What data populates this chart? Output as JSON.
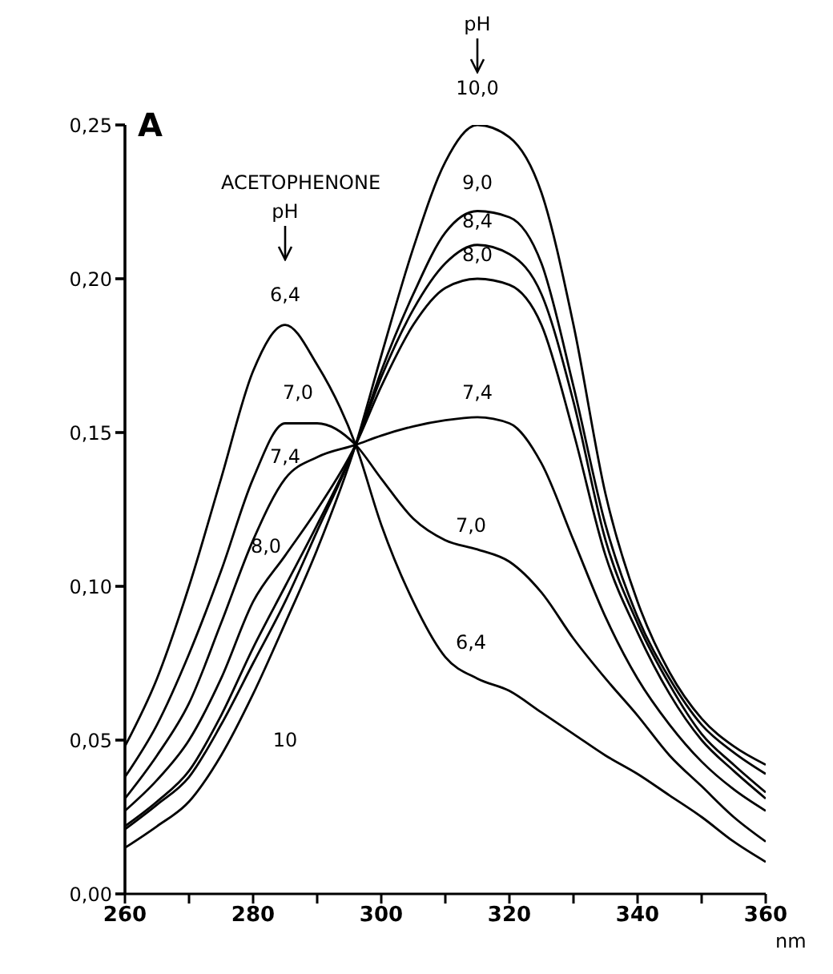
{
  "chart_data": {
    "type": "line",
    "title": "ACETOPHENONE",
    "xlabel": "nm",
    "ylabel": "A",
    "x": [
      260,
      265,
      270,
      275,
      280,
      285,
      290,
      296,
      300,
      305,
      310,
      315,
      320,
      325,
      330,
      335,
      340,
      345,
      350,
      355,
      360
    ],
    "series": [
      {
        "color": "#000000",
        "values": [
          0.048,
          0.07,
          0.1,
          0.135,
          0.17,
          0.185,
          0.172,
          0.146,
          0.12,
          0.095,
          0.077,
          0.07,
          0.066,
          0.059,
          0.052,
          0.045,
          0.039,
          0.032,
          0.025,
          0.017,
          0.0104
        ]
      },
      {
        "color": "#000000",
        "values": [
          0.038,
          0.055,
          0.078,
          0.105,
          0.135,
          0.153,
          0.153,
          0.146,
          0.135,
          0.122,
          0.115,
          0.112,
          0.108,
          0.098,
          0.083,
          0.07,
          0.058,
          0.045,
          0.035,
          0.025,
          0.017
        ]
      },
      {
        "color": "#000000",
        "values": [
          0.031,
          0.045,
          0.062,
          0.088,
          0.115,
          0.135,
          0.142,
          0.146,
          0.149,
          0.152,
          0.154,
          0.155,
          0.153,
          0.14,
          0.115,
          0.09,
          0.07,
          0.055,
          0.043,
          0.034,
          0.027
        ]
      },
      {
        "color": "#000000",
        "values": [
          0.027,
          0.037,
          0.05,
          0.07,
          0.095,
          0.11,
          0.125,
          0.146,
          0.165,
          0.185,
          0.197,
          0.2,
          0.198,
          0.185,
          0.15,
          0.11,
          0.085,
          0.065,
          0.05,
          0.04,
          0.031
        ]
      },
      {
        "color": "#000000",
        "values": [
          0.022,
          0.03,
          0.04,
          0.058,
          0.08,
          0.1,
          0.12,
          0.146,
          0.168,
          0.19,
          0.205,
          0.211,
          0.208,
          0.195,
          0.16,
          0.115,
          0.088,
          0.068,
          0.052,
          0.042,
          0.033
        ]
      },
      {
        "color": "#000000",
        "values": [
          0.021,
          0.029,
          0.038,
          0.055,
          0.075,
          0.095,
          0.118,
          0.146,
          0.17,
          0.195,
          0.215,
          0.222,
          0.22,
          0.205,
          0.165,
          0.12,
          0.09,
          0.07,
          0.055,
          0.046,
          0.039
        ]
      },
      {
        "color": "#000000",
        "values": [
          0.015,
          0.022,
          0.03,
          0.045,
          0.065,
          0.088,
          0.112,
          0.146,
          0.175,
          0.21,
          0.238,
          0.25,
          0.246,
          0.228,
          0.185,
          0.13,
          0.095,
          0.072,
          0.057,
          0.048,
          0.042
        ]
      }
    ],
    "xlim": [
      260,
      360
    ],
    "xticks": [
      260,
      {
        "value": 270,
        "label": null
      },
      280,
      {
        "value": 290,
        "label": null
      },
      300,
      {
        "value": 310,
        "label": null
      },
      320,
      {
        "value": 330,
        "label": null
      },
      340,
      {
        "value": 350,
        "label": null
      },
      360
    ],
    "ylim": [
      0,
      0.25
    ],
    "yticks": [
      {
        "value": 0,
        "label": "0,00"
      },
      {
        "value": 0.05,
        "label": "0,05"
      },
      {
        "value": 0.1,
        "label": "0,10"
      },
      {
        "value": 0.15,
        "label": "0,15"
      },
      {
        "value": 0.2,
        "label": "0,20"
      },
      {
        "value": 0.25,
        "label": "0,25"
      }
    ],
    "grid": false,
    "marker": "none",
    "line_style": "solid",
    "annotations": [
      "pH",
      "pH",
      "6,4",
      "7,0",
      "7,4",
      "8,0",
      "10",
      "10,0",
      "9,0",
      "8,4",
      "8,0",
      "7,4",
      "7,0",
      "6,4"
    ]
  }
}
